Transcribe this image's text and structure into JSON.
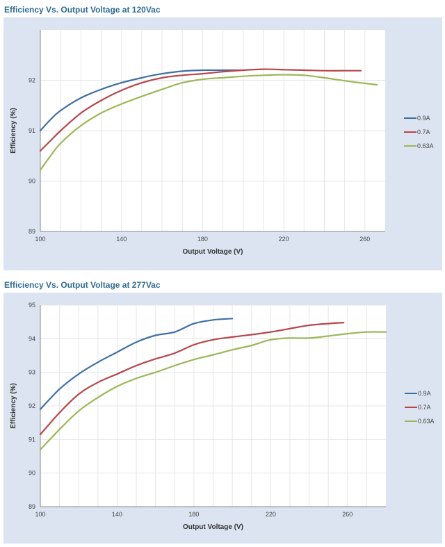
{
  "chart_data": [
    {
      "type": "line",
      "title": "Efficiency Vs. Output Voltage at 120Vac",
      "xlabel": "Output Voltage (V)",
      "ylabel": "Efficiency (%)",
      "xlim": [
        100,
        270
      ],
      "ylim": [
        89,
        93
      ],
      "xticks": [
        100,
        140,
        180,
        220,
        260
      ],
      "yticks": [
        89,
        90,
        91,
        92
      ],
      "grid": true,
      "legend_position": "right",
      "series": [
        {
          "name": "0.9A",
          "color": "#3d6fa5",
          "x": [
            100,
            105,
            110,
            120,
            130,
            140,
            150,
            160,
            170,
            180,
            190,
            200
          ],
          "y": [
            91.0,
            91.22,
            91.4,
            91.65,
            91.82,
            91.95,
            92.05,
            92.13,
            92.18,
            92.2,
            92.2,
            92.2
          ]
        },
        {
          "name": "0.7A",
          "color": "#b8454a",
          "x": [
            100,
            105,
            110,
            120,
            130,
            140,
            150,
            160,
            170,
            180,
            190,
            200,
            210,
            220,
            230,
            240,
            250,
            258
          ],
          "y": [
            90.6,
            90.8,
            91.0,
            91.35,
            91.6,
            91.8,
            91.95,
            92.05,
            92.1,
            92.13,
            92.17,
            92.2,
            92.22,
            92.21,
            92.2,
            92.19,
            92.19,
            92.19
          ]
        },
        {
          "name": "0.63A",
          "color": "#9bb757",
          "x": [
            100,
            105,
            110,
            120,
            130,
            140,
            150,
            160,
            170,
            180,
            190,
            200,
            210,
            220,
            230,
            240,
            250,
            260,
            266
          ],
          "y": [
            90.22,
            90.5,
            90.75,
            91.1,
            91.35,
            91.53,
            91.68,
            91.82,
            91.95,
            92.02,
            92.05,
            92.08,
            92.1,
            92.11,
            92.1,
            92.05,
            91.99,
            91.94,
            91.91
          ]
        }
      ]
    },
    {
      "type": "line",
      "title": "Efficiency Vs. Output Voltage at 277Vac",
      "xlabel": "Output Voltage (V)",
      "ylabel": "Efficiency (%)",
      "xlim": [
        100,
        280
      ],
      "ylim": [
        89,
        95
      ],
      "xticks": [
        100,
        140,
        180,
        220,
        260
      ],
      "yticks": [
        89,
        90,
        91,
        92,
        93,
        94,
        95
      ],
      "grid": true,
      "legend_position": "right",
      "series": [
        {
          "name": "0.9A",
          "color": "#3d6fa5",
          "x": [
            100,
            110,
            120,
            130,
            140,
            150,
            160,
            170,
            180,
            190,
            200
          ],
          "y": [
            91.9,
            92.5,
            92.95,
            93.3,
            93.6,
            93.9,
            94.1,
            94.2,
            94.45,
            94.56,
            94.6
          ]
        },
        {
          "name": "0.7A",
          "color": "#b8454a",
          "x": [
            100,
            110,
            120,
            130,
            140,
            150,
            160,
            170,
            180,
            190,
            200,
            210,
            220,
            230,
            240,
            250,
            258
          ],
          "y": [
            91.15,
            91.8,
            92.35,
            92.7,
            92.95,
            93.2,
            93.4,
            93.57,
            93.82,
            93.97,
            94.05,
            94.12,
            94.2,
            94.3,
            94.4,
            94.45,
            94.48
          ]
        },
        {
          "name": "0.63A",
          "color": "#9bb757",
          "x": [
            100,
            110,
            120,
            130,
            140,
            150,
            160,
            170,
            180,
            190,
            200,
            210,
            220,
            230,
            240,
            250,
            260,
            270,
            280
          ],
          "y": [
            90.7,
            91.3,
            91.85,
            92.25,
            92.58,
            92.82,
            93.0,
            93.2,
            93.38,
            93.52,
            93.67,
            93.8,
            93.97,
            94.02,
            94.02,
            94.08,
            94.15,
            94.2,
            94.2
          ]
        }
      ]
    }
  ]
}
